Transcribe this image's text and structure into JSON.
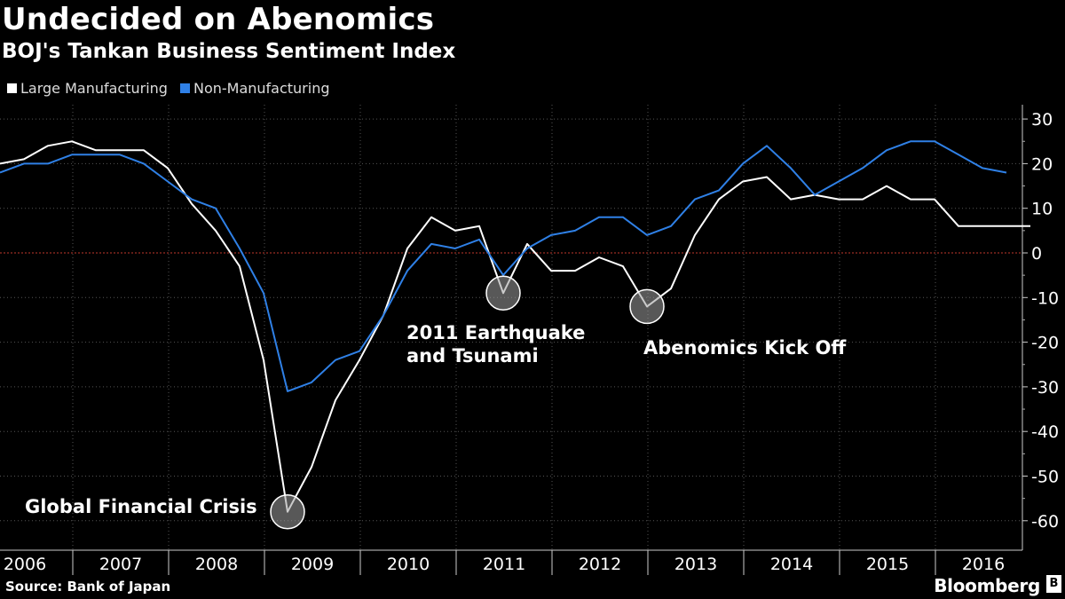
{
  "title": "Undecided on Abenomics",
  "subtitle": "BOJ's Tankan Business Sentiment Index",
  "legend": [
    {
      "label": "Large Manufacturing",
      "color": "#ffffff"
    },
    {
      "label": "Non-Manufacturing",
      "color": "#2f80e6"
    }
  ],
  "source": "Source: Bank of Japan",
  "brand": "Bloomberg",
  "chart_data": {
    "type": "line",
    "title": "Undecided on Abenomics",
    "subtitle": "BOJ's Tankan Business Sentiment Index",
    "x_tick_labels": [
      "2006",
      "2007",
      "2008",
      "2009",
      "2010",
      "2011",
      "2012",
      "2013",
      "2014",
      "2015",
      "2016"
    ],
    "y_ticks": [
      30,
      20,
      10,
      0,
      -10,
      -20,
      -30,
      -40,
      -50,
      -60
    ],
    "ylim": [
      -65,
      32
    ],
    "x_start_quarter": "2006-Q1",
    "series": [
      {
        "name": "Large Manufacturing",
        "color": "#ffffff",
        "values": [
          20,
          21,
          24,
          25,
          23,
          23,
          23,
          19,
          11,
          5,
          -3,
          -24,
          -58,
          -48,
          -33,
          -24,
          -14,
          1,
          8,
          5,
          6,
          -9,
          2,
          -4,
          -4,
          -1,
          -3,
          -12,
          -8,
          4,
          12,
          16,
          17,
          12,
          13,
          12,
          12,
          15,
          12,
          12,
          6,
          6,
          6,
          6
        ]
      },
      {
        "name": "Non-Manufacturing",
        "color": "#2f80e6",
        "values": [
          18,
          20,
          20,
          22,
          22,
          22,
          20,
          16,
          12,
          10,
          1,
          -9,
          -31,
          -29,
          -24,
          -22,
          -14,
          -4,
          2,
          1,
          3,
          -5,
          1,
          4,
          5,
          8,
          8,
          4,
          6,
          12,
          14,
          20,
          24,
          19,
          13,
          16,
          19,
          23,
          25,
          25,
          22,
          19,
          18,
          null
        ]
      }
    ],
    "reference_line": {
      "value": 0,
      "color": "#c0392b"
    },
    "annotations": [
      {
        "text": [
          "Global Financial Crisis"
        ],
        "series": 0,
        "point": 12
      },
      {
        "text": [
          "2011 Earthquake",
          "and Tsunami"
        ],
        "series": 0,
        "point": 21
      },
      {
        "text": [
          "Abenomics Kick Off"
        ],
        "series": 0,
        "point": 27
      }
    ],
    "grid": true,
    "legend_position": "top-left"
  }
}
